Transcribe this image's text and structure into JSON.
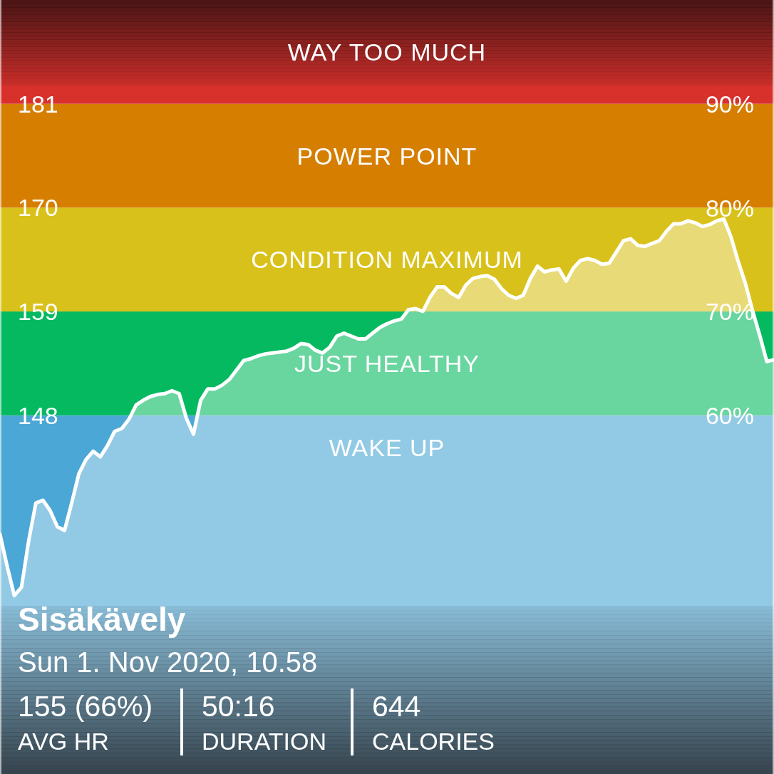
{
  "chart_data": {
    "type": "area",
    "title": "Sisäkävely",
    "subtitle": "Sun 1. Nov 2020, 10.58",
    "categories": [
      null,
      null,
      null,
      null,
      null,
      null,
      null,
      null,
      null,
      null,
      null,
      null,
      null,
      null,
      null,
      null,
      null,
      null,
      null,
      null,
      null,
      null,
      null,
      null,
      null,
      null,
      null,
      null,
      null,
      null,
      null,
      null,
      null,
      null,
      null,
      null,
      null,
      null,
      null,
      null,
      null,
      null,
      null,
      null,
      null,
      null,
      null,
      null,
      null,
      null,
      null,
      null,
      null,
      null,
      null,
      null,
      null,
      null,
      null,
      null,
      null,
      null,
      null,
      null,
      null,
      null,
      null,
      null,
      null,
      null,
      null,
      null,
      null,
      null,
      null,
      null,
      null,
      null,
      null,
      null,
      null,
      null,
      null,
      null,
      null,
      null,
      null,
      null,
      null,
      null,
      null,
      null,
      null,
      null,
      null,
      null,
      null,
      null,
      null,
      null,
      null,
      null,
      null,
      null,
      null,
      null,
      null,
      null,
      null
    ],
    "series": [
      {
        "color": "#ffffff",
        "values": [
          135.4,
          132.0,
          128.9,
          129.8,
          134.7,
          138.7,
          139.0,
          137.9,
          136.2,
          135.8,
          138.7,
          141.8,
          143.3,
          144.2,
          143.6,
          144.8,
          146.3,
          146.6,
          147.6,
          149.1,
          149.6,
          150.0,
          150.2,
          150.3,
          150.6,
          150.3,
          147.7,
          146.0,
          149.6,
          150.8,
          150.8,
          151.2,
          151.8,
          152.8,
          153.8,
          154.0,
          154.3,
          154.5,
          154.6,
          154.7,
          154.8,
          155.1,
          155.6,
          155.5,
          154.9,
          154.6,
          155.2,
          156.4,
          156.7,
          156.4,
          156.1,
          156.1,
          156.7,
          157.3,
          157.7,
          158.0,
          158.2,
          159.2,
          159.3,
          159.0,
          160.5,
          161.6,
          161.6,
          160.9,
          160.5,
          161.8,
          162.5,
          162.7,
          162.8,
          162.4,
          161.4,
          160.7,
          160.4,
          160.7,
          162.5,
          163.8,
          163.2,
          163.4,
          163.5,
          162.2,
          163.6,
          164.4,
          164.6,
          164.4,
          164.0,
          164.1,
          165.3,
          166.5,
          166.7,
          166.0,
          165.9,
          166.2,
          166.5,
          167.5,
          168.3,
          168.3,
          168.6,
          168.4,
          168.0,
          168.2,
          168.6,
          168.8,
          166.9,
          164.3,
          162.0,
          159.1,
          156.5,
          153.7,
          153.9
        ]
      }
    ],
    "ylim": [
      110,
      192
    ],
    "yticks": [
      148,
      159,
      170,
      181
    ],
    "y2lim": [
      25.5,
      100
    ],
    "y2ticks": [
      {
        "value": 60,
        "label": "60%"
      },
      {
        "value": 70,
        "label": "70%"
      },
      {
        "value": 80,
        "label": "80%"
      },
      {
        "value": 90,
        "label": "90%"
      }
    ],
    "bands": [
      {
        "axis": "y",
        "from": 110,
        "to": 148,
        "label": "WAKE UP",
        "color": "#4aa7d6"
      },
      {
        "axis": "y",
        "from": 148,
        "to": 159,
        "label": "JUST HEALTHY",
        "color": "#05b960"
      },
      {
        "axis": "y",
        "from": 159,
        "to": 170,
        "label": "CONDITION MAXIMUM",
        "color": "#d9c11b"
      },
      {
        "axis": "y",
        "from": 170,
        "to": 181,
        "label": "POWER POINT",
        "color": "#d67e00"
      },
      {
        "axis": "y",
        "from": 181,
        "to": 192,
        "label": "WAY TOO MUCH",
        "color": "#d8312c"
      }
    ],
    "annotations": [
      "155 (66%)",
      "AVG HR",
      "50:16",
      "DURATION",
      "644",
      "CALORIES"
    ],
    "line_style": "solid"
  }
}
